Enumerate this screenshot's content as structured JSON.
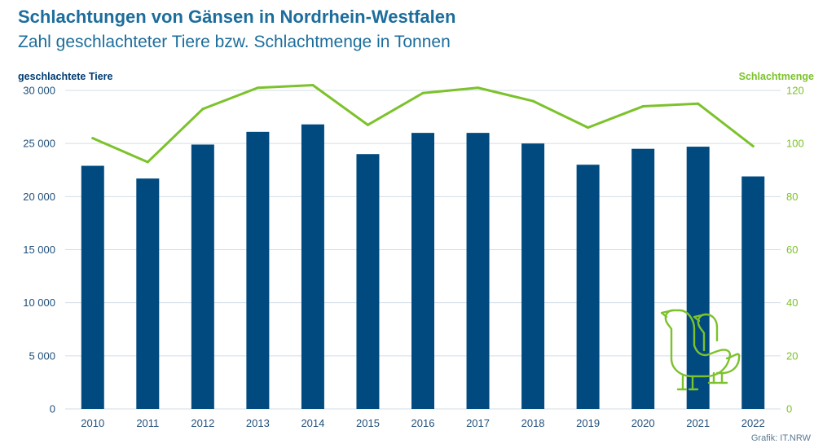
{
  "header": {
    "title": "Schlachtungen von Gänsen in Nordrhein-Westfalen",
    "subtitle": "Zahl geschlachteter Tiere bzw. Schlachtmenge in Tonnen"
  },
  "source": "Grafik: IT.NRW",
  "colors": {
    "bars": "#004a80",
    "line": "#7cc22b",
    "grid": "#d3dde6",
    "left_axis_text": "#1f4f7a",
    "right_axis_text": "#7cc22b"
  },
  "icons": [
    "geese-icon"
  ],
  "chart_data": {
    "type": "bar",
    "categories": [
      "2010",
      "2011",
      "2012",
      "2013",
      "2014",
      "2015",
      "2016",
      "2017",
      "2018",
      "2019",
      "2020",
      "2021",
      "2022"
    ],
    "series": [
      {
        "name": "geschlachtete Tiere",
        "type": "bar",
        "axis": "left",
        "values": [
          22900,
          21700,
          24900,
          26100,
          26800,
          24000,
          26000,
          26000,
          25000,
          23000,
          24500,
          24700,
          21900
        ]
      },
      {
        "name": "Schlachtmenge",
        "type": "line",
        "axis": "right",
        "values": [
          102,
          93,
          113,
          121,
          122,
          107,
          119,
          121,
          116,
          106,
          114,
          115,
          99
        ]
      }
    ],
    "ylabel": "geschlachtete Tiere",
    "ylabel_right": "Schlachtmenge",
    "ylim": [
      0,
      30000
    ],
    "ylim_right": [
      0,
      120
    ],
    "yticks": [
      0,
      5000,
      10000,
      15000,
      20000,
      25000,
      30000
    ],
    "yticks_labels": [
      "0",
      "5 000",
      "10 000",
      "15 000",
      "20 000",
      "25 000",
      "30 000"
    ],
    "yticks_right": [
      0,
      20,
      40,
      60,
      80,
      100,
      120
    ],
    "grid": true
  }
}
